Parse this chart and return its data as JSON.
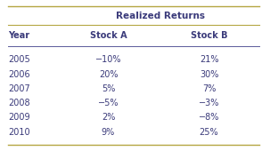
{
  "title": "Realized Returns",
  "col_headers": [
    "Year",
    "Stock A",
    "Stock B"
  ],
  "rows": [
    [
      "2005",
      "−10%",
      "21%"
    ],
    [
      "2006",
      "20%",
      "30%"
    ],
    [
      "2007",
      "5%",
      "7%"
    ],
    [
      "2008",
      "−5%",
      "−3%"
    ],
    [
      "2009",
      "2%",
      "−8%"
    ],
    [
      "2010",
      "9%",
      "25%"
    ]
  ],
  "header_color": "#3a3a7a",
  "data_color": "#3a3a7a",
  "top_line_color": "#b5a642",
  "sub_line_color": "#5a5a9a",
  "bottom_line_color": "#b5a642",
  "bg_color": "#ffffff",
  "title_fontsize": 7.5,
  "header_fontsize": 7.0,
  "data_fontsize": 7.0
}
